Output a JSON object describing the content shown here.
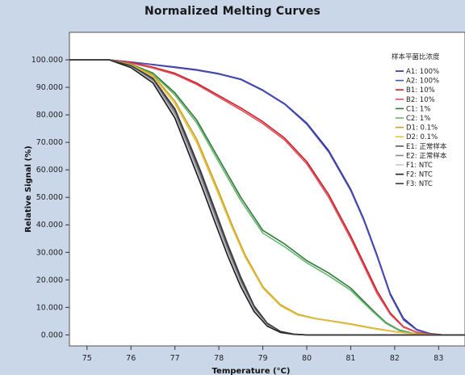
{
  "chart_data": {
    "type": "line",
    "title": "Normalized Melting Curves",
    "xlabel": "Temperature (°C)",
    "ylabel": "Relative Signal (%)",
    "xlim": [
      74.6,
      83.6
    ],
    "ylim": [
      -4,
      110
    ],
    "xticks": [
      75,
      76,
      77,
      78,
      79,
      80,
      81,
      82,
      83
    ],
    "yticks": [
      0,
      10,
      20,
      30,
      40,
      50,
      60,
      70,
      80,
      90,
      100
    ],
    "ytick_labels": [
      "0.000",
      "10.000",
      "20.000",
      "30.000",
      "40.000",
      "50.000",
      "60.000",
      "70.000",
      "80.000",
      "90.000",
      "100.000"
    ],
    "grid": false,
    "legend_position": "top-right",
    "legend_title": "样本平菌比浓度",
    "series": [
      {
        "name": "A1: 100%",
        "color": "#2b2b8f",
        "x": [
          74.6,
          75.5,
          76,
          76.5,
          77,
          77.5,
          78,
          78.5,
          79,
          79.5,
          80,
          80.5,
          81,
          81.3,
          81.6,
          81.9,
          82.2,
          82.5,
          82.8,
          83.1,
          83.6
        ],
        "y": [
          100,
          100,
          99.2,
          98.3,
          97.4,
          96.4,
          95,
          93,
          89,
          84,
          77,
          67,
          53,
          42,
          29,
          15,
          6,
          2,
          0.5,
          0,
          0
        ]
      },
      {
        "name": "A2: 100%",
        "color": "#4a50b5",
        "x": [
          74.6,
          75.5,
          76,
          76.5,
          77,
          77.5,
          78,
          78.5,
          79,
          79.5,
          80,
          80.5,
          81,
          81.3,
          81.6,
          81.9,
          82.2,
          82.5,
          82.8,
          83.1,
          83.6
        ],
        "y": [
          100,
          100,
          99.2,
          98.2,
          97.2,
          96.2,
          94.8,
          92.8,
          88.8,
          83.8,
          76.6,
          66.5,
          52.5,
          41.5,
          28.5,
          14.5,
          5.5,
          1.8,
          0.4,
          0,
          0
        ]
      },
      {
        "name": "B1: 10%",
        "color": "#c8202a",
        "x": [
          74.6,
          75.5,
          76,
          76.5,
          77,
          77.5,
          78,
          78.5,
          79,
          79.5,
          80,
          80.5,
          81,
          81.3,
          81.6,
          81.9,
          82.2,
          82.5,
          82.8,
          83.1,
          83.6
        ],
        "y": [
          100,
          100,
          99,
          97.3,
          95.1,
          91.5,
          87,
          82.5,
          77.5,
          71.5,
          63,
          51,
          36,
          26,
          16,
          8,
          3,
          1,
          0.3,
          0,
          0
        ]
      },
      {
        "name": "B2: 10%",
        "color": "#e0505a",
        "x": [
          74.6,
          75.5,
          76,
          76.5,
          77,
          77.5,
          78,
          78.5,
          79,
          79.5,
          80,
          80.5,
          81,
          81.3,
          81.6,
          81.9,
          82.2,
          82.5,
          82.8,
          83.1,
          83.6
        ],
        "y": [
          100,
          100,
          98.8,
          97,
          94.7,
          91,
          86.4,
          81.8,
          76.8,
          70.8,
          62.2,
          50,
          35,
          25,
          15,
          7.5,
          2.8,
          0.9,
          0.2,
          0,
          0
        ]
      },
      {
        "name": "C1: 1%",
        "color": "#2e7a3a",
        "x": [
          74.6,
          75.5,
          76,
          76.5,
          77,
          77.5,
          78,
          78.5,
          79,
          79.5,
          80,
          80.5,
          81,
          81.5,
          81.8,
          82.1,
          82.4,
          82.7,
          83,
          83.6
        ],
        "y": [
          100,
          100,
          98.4,
          95.2,
          88,
          78,
          64,
          50,
          38,
          33,
          27,
          22.5,
          17,
          9,
          4.5,
          1.8,
          0.6,
          0.1,
          0,
          0
        ]
      },
      {
        "name": "C2: 1%",
        "color": "#6ab56f",
        "x": [
          74.6,
          75.5,
          76,
          76.5,
          77,
          77.5,
          78,
          78.5,
          79,
          79.5,
          80,
          80.5,
          81,
          81.5,
          81.8,
          82.1,
          82.4,
          82.7,
          83,
          83.6
        ],
        "y": [
          100,
          100,
          98.2,
          94.8,
          87.2,
          77,
          62.8,
          48.8,
          37,
          32,
          26.2,
          21.5,
          16.2,
          8.5,
          4.2,
          1.6,
          0.5,
          0.1,
          0,
          0
        ]
      },
      {
        "name": "D1: 0.1%",
        "color": "#c9a020",
        "x": [
          74.6,
          75.5,
          76,
          76.5,
          77,
          77.5,
          78,
          78.3,
          78.6,
          79,
          79.4,
          79.8,
          80.2,
          80.6,
          81,
          81.5,
          82,
          82.5,
          83,
          83.6
        ],
        "y": [
          100,
          100,
          98.3,
          94.5,
          85,
          71,
          52,
          40,
          29,
          17.5,
          11,
          7.5,
          6,
          5,
          4,
          2.5,
          1.2,
          0.4,
          0,
          0
        ]
      },
      {
        "name": "D2: 0.1%",
        "color": "#e3c24a",
        "x": [
          74.6,
          75.5,
          76,
          76.5,
          77,
          77.5,
          78,
          78.3,
          78.6,
          79,
          79.4,
          79.8,
          80.2,
          80.6,
          81,
          81.5,
          82,
          82.5,
          83,
          83.6
        ],
        "y": [
          100,
          100,
          98.1,
          94,
          84,
          69.8,
          50.8,
          39,
          28.2,
          17,
          10.6,
          7.2,
          5.8,
          4.8,
          3.8,
          2.3,
          1.1,
          0.3,
          0,
          0
        ]
      },
      {
        "name": "E1: 正常样本",
        "color": "#555560",
        "x": [
          74.6,
          75.5,
          76,
          76.5,
          77,
          77.3,
          77.6,
          77.9,
          78.2,
          78.5,
          78.8,
          79.1,
          79.4,
          79.7,
          80,
          80.5,
          81,
          82,
          83.6
        ],
        "y": [
          100,
          100,
          97.8,
          93,
          81.5,
          70,
          58,
          45,
          32,
          20,
          10,
          4,
          1.2,
          0.3,
          0,
          0,
          0,
          0,
          0
        ]
      },
      {
        "name": "E2: 正常样本",
        "color": "#8a8a95",
        "x": [
          74.6,
          75.5,
          76,
          76.5,
          77,
          77.3,
          77.6,
          77.9,
          78.2,
          78.5,
          78.8,
          79.1,
          79.4,
          79.7,
          80,
          80.5,
          81,
          82,
          83.6
        ],
        "y": [
          100,
          100,
          97.6,
          92.5,
          80.5,
          68.8,
          56.8,
          43.8,
          31,
          19.2,
          9.5,
          3.7,
          1.1,
          0.3,
          0,
          0,
          0,
          0,
          0
        ]
      },
      {
        "name": "F1: NTC",
        "color": "#c8c8d2",
        "x": [
          74.6,
          75.5,
          76,
          76.5,
          77,
          77.3,
          77.6,
          77.9,
          78.2,
          78.5,
          78.8,
          79.1,
          79.4,
          79.7,
          80,
          80.5,
          81,
          82,
          83.6
        ],
        "y": [
          100,
          100,
          97.4,
          92,
          79.6,
          67.6,
          55.5,
          42.5,
          29.8,
          18.3,
          9,
          3.4,
          1,
          0.2,
          0,
          0,
          0,
          0,
          0
        ]
      },
      {
        "name": "F2: NTC",
        "color": "#1c1c1c",
        "x": [
          74.6,
          75.5,
          76,
          76.5,
          77,
          77.3,
          77.6,
          77.9,
          78.2,
          78.5,
          78.8,
          79.1,
          79.4,
          79.7,
          80,
          80.5,
          81,
          82,
          83.6
        ],
        "y": [
          100,
          100,
          97.2,
          91.6,
          78.8,
          66.6,
          54.4,
          41.4,
          28.8,
          17.5,
          8.5,
          3.2,
          0.9,
          0.2,
          0,
          0,
          0,
          0,
          0
        ]
      },
      {
        "name": "F3: NTC",
        "color": "#3a3a3a",
        "x": [
          74.6,
          75.5,
          76,
          76.5,
          77,
          77.3,
          77.6,
          77.9,
          78.2,
          78.5,
          78.8,
          79.1,
          79.4,
          79.7,
          80,
          80.5,
          81,
          82,
          83.6
        ],
        "y": [
          100,
          100,
          97.9,
          93.3,
          82.2,
          70.8,
          59,
          46,
          33,
          21,
          10.6,
          4.3,
          1.3,
          0.3,
          0,
          0,
          0,
          0,
          0
        ]
      }
    ]
  }
}
